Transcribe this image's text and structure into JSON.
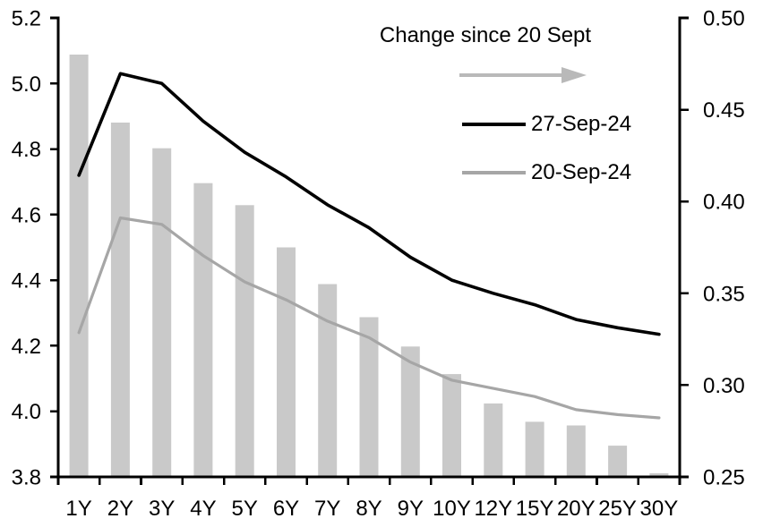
{
  "chart_data": {
    "type": "combo-bar-line",
    "title": "",
    "categories": [
      "1Y",
      "2Y",
      "3Y",
      "4Y",
      "5Y",
      "6Y",
      "7Y",
      "8Y",
      "9Y",
      "10Y",
      "12Y",
      "15Y",
      "20Y",
      "25Y",
      "30Y"
    ],
    "series": [
      {
        "name": "Change since 20 Sept",
        "type": "bar",
        "axis": "right",
        "color": "#c9c9c9",
        "values": [
          0.48,
          0.443,
          0.429,
          0.41,
          0.398,
          0.375,
          0.355,
          0.337,
          0.321,
          0.306,
          0.29,
          0.28,
          0.278,
          0.267,
          0.252
        ]
      },
      {
        "name": "27-Sep-24",
        "type": "line",
        "axis": "left",
        "color": "#000000",
        "values": [
          4.72,
          5.03,
          5.0,
          4.885,
          4.79,
          4.715,
          4.63,
          4.56,
          4.47,
          4.4,
          4.36,
          4.325,
          4.28,
          4.255,
          4.235
        ]
      },
      {
        "name": "20-Sep-24",
        "type": "line",
        "axis": "left",
        "color": "#a6a6a6",
        "values": [
          4.24,
          4.59,
          4.57,
          4.475,
          4.395,
          4.34,
          4.275,
          4.225,
          4.15,
          4.095,
          4.07,
          4.045,
          4.005,
          3.99,
          3.98
        ]
      }
    ],
    "left_axis": {
      "min": 3.8,
      "max": 5.2,
      "step": 0.2,
      "tick_labels": [
        "5.2",
        "5.0",
        "4.8",
        "4.6",
        "4.4",
        "4.2",
        "4.0",
        "3.8"
      ]
    },
    "right_axis": {
      "min": 0.25,
      "max": 0.5,
      "step": 0.05,
      "tick_labels": [
        "0.50",
        "0.45",
        "0.40",
        "0.35",
        "0.30",
        "0.25"
      ]
    },
    "grid": false,
    "legend": {
      "position": "top-right-inside",
      "title": "Change since 20 Sept",
      "arrow_color": "#b9b9b9",
      "entries": [
        {
          "label": "27-Sep-24",
          "color": "#000000"
        },
        {
          "label": "20-Sep-24",
          "color": "#a6a6a6"
        }
      ]
    }
  }
}
